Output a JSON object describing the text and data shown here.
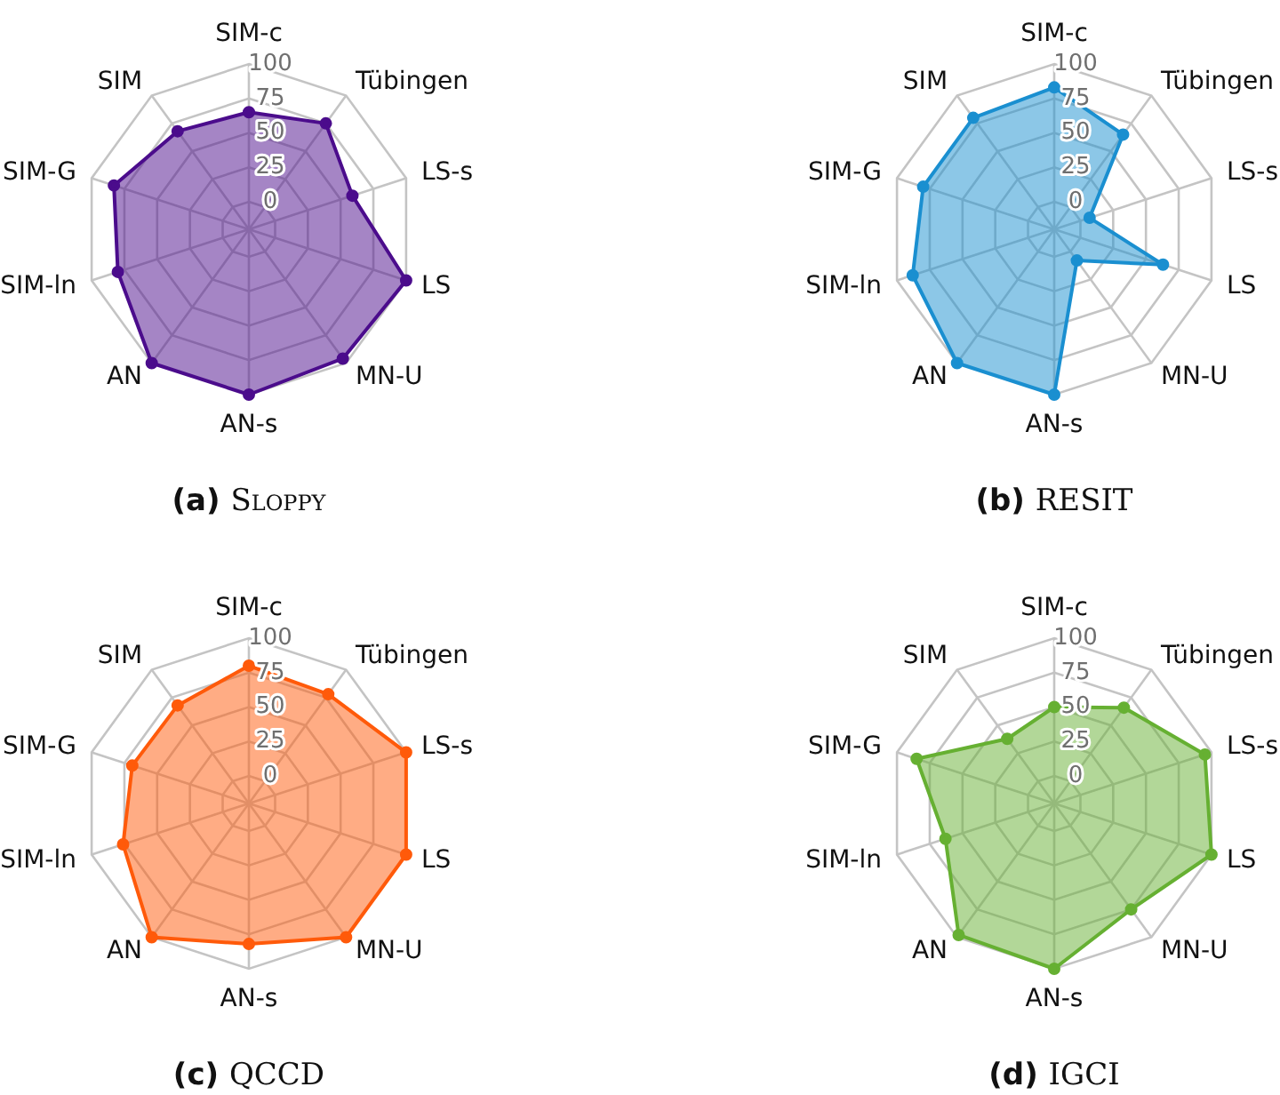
{
  "chart_data": [
    {
      "type": "radar",
      "title": "(a) Sloppy",
      "categories": [
        "SIM-c",
        "Tübingen",
        "LS-s",
        "LS",
        "MN-U",
        "AN-s",
        "AN",
        "SIM-ln",
        "SIM-G",
        "SIM"
      ],
      "ylim": [
        -20,
        100
      ],
      "yticks": [
        0,
        25,
        50,
        75,
        100
      ],
      "grid": true,
      "marker": "circle",
      "series": [
        {
          "color": "#4b0c8c",
          "values": [
            65,
            75,
            59,
            100,
            96,
            100,
            100,
            80,
            83,
            68
          ]
        }
      ]
    },
    {
      "type": "radar",
      "title": "(b) RESIT",
      "categories": [
        "SIM-c",
        "Tübingen",
        "LS-s",
        "LS",
        "MN-U",
        "AN-s",
        "AN",
        "SIM-ln",
        "SIM-G",
        "SIM"
      ],
      "ylim": [
        -20,
        100
      ],
      "yticks": [
        0,
        25,
        50,
        75,
        100
      ],
      "grid": true,
      "marker": "circle",
      "series": [
        {
          "color": "#1a8fd0",
          "values": [
            83,
            65,
            7,
            63,
            8,
            100,
            100,
            88,
            80,
            80
          ]
        }
      ]
    },
    {
      "type": "radar",
      "title": "(c) QCCD",
      "categories": [
        "SIM-c",
        "Tübingen",
        "LS-s",
        "LS",
        "MN-U",
        "AN-s",
        "AN",
        "SIM-ln",
        "SIM-G",
        "SIM"
      ],
      "ylim": [
        -20,
        100
      ],
      "yticks": [
        0,
        25,
        50,
        75,
        100
      ],
      "grid": true,
      "marker": "circle",
      "series": [
        {
          "color": "#ff5a0a",
          "values": [
            80,
            78,
            100,
            100,
            100,
            82,
            100,
            76,
            69,
            68
          ]
        }
      ]
    },
    {
      "type": "radar",
      "title": "(d) IGCI",
      "categories": [
        "SIM-c",
        "Tübingen",
        "LS-s",
        "LS",
        "MN-U",
        "AN-s",
        "AN",
        "SIM-ln",
        "SIM-G",
        "SIM"
      ],
      "ylim": [
        -20,
        100
      ],
      "yticks": [
        0,
        25,
        50,
        75,
        100
      ],
      "grid": true,
      "marker": "circle",
      "series": [
        {
          "color": "#66b032",
          "values": [
            50,
            66,
            95,
            100,
            75,
            100,
            98,
            63,
            85,
            38
          ]
        }
      ]
    }
  ]
}
